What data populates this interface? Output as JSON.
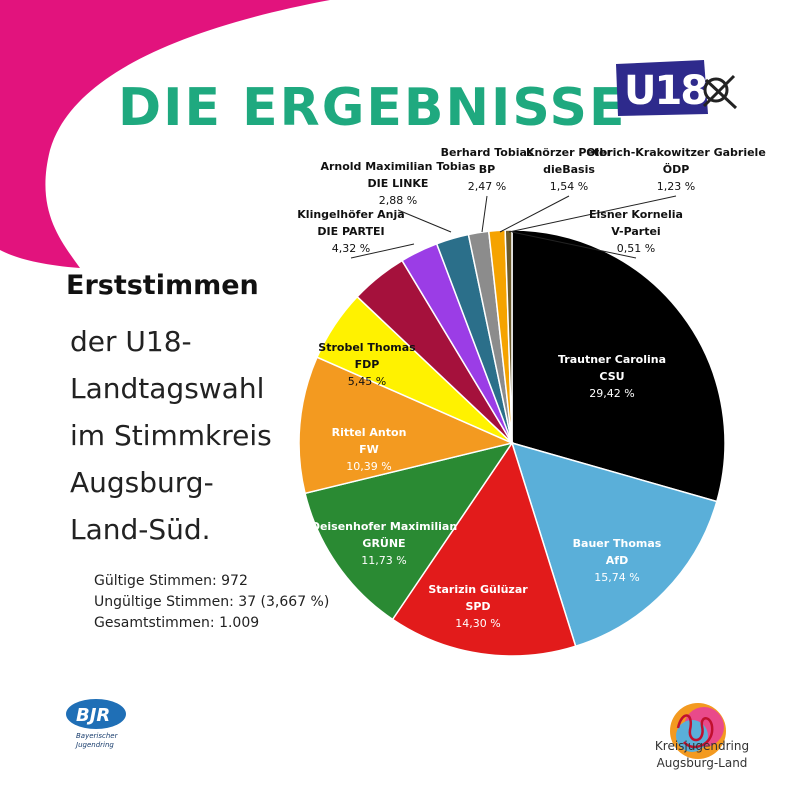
{
  "header": {
    "title": "DIE ERGEBNISSE",
    "logo_text": "U18"
  },
  "intro": {
    "headline": "Erststimmen",
    "lines": [
      "der U18-",
      "Landtagswahl",
      "im Stimmkreis",
      "Augsburg-",
      "Land-Süd."
    ]
  },
  "stats": {
    "valid": "Gültige Stimmen: 972",
    "invalid": "Ungültige Stimmen: 37 (3,667 %)",
    "total": "Gesamtstimmen: 1.009"
  },
  "footer": {
    "bjr_logo": "BJR",
    "bjr_text": [
      "Bayerischer",
      "Jugendring"
    ],
    "kjr_text": [
      "Kreisjugendring",
      "Augsburg-Land"
    ]
  },
  "colors": {
    "magenta": "#e2137d",
    "title_green": "#1fa97f",
    "u18_blue": "#2e2a8c",
    "u18_pink": "#e8147e"
  },
  "chart_data": {
    "type": "pie",
    "start": "12 o'clock, clockwise",
    "slices": [
      {
        "name": "Trautner Carolina",
        "party": "CSU",
        "value": 29.42,
        "label": "29,42 %",
        "color": "#000000"
      },
      {
        "name": "Bauer Thomas",
        "party": "AfD",
        "value": 15.74,
        "label": "15,74 %",
        "color": "#5aafd9"
      },
      {
        "name": "Starizin Gülüzar",
        "party": "SPD",
        "value": 14.3,
        "label": "14,30 %",
        "color": "#e21b1b"
      },
      {
        "name": "Deisenhofer Maximilian",
        "party": "GRÜNE",
        "value": 11.73,
        "label": "11,73 %",
        "color": "#2a8a33"
      },
      {
        "name": "Rittel Anton",
        "party": "FW",
        "value": 10.39,
        "label": "10,39 %",
        "color": "#f39a20"
      },
      {
        "name": "Strobel Thomas",
        "party": "FDP",
        "value": 5.45,
        "label": "5,45 %",
        "color": "#fff200"
      },
      {
        "name": "Klingelhöfer Anja",
        "party": "DIE PARTEI",
        "value": 4.32,
        "label": "4,32 %",
        "color": "#a5113c"
      },
      {
        "name": "Arnold Maximilian Tobias",
        "party": "DIE LINKE",
        "value": 2.88,
        "label": "2,88 %",
        "color": "#9b3de6"
      },
      {
        "name": "Berhard Tobias",
        "party": "BP",
        "value": 2.47,
        "label": "2,47 %",
        "color": "#2b6f8a"
      },
      {
        "name": "Knörzer Peter",
        "party": "dieBasis",
        "value": 1.54,
        "label": "1,54 %",
        "color": "#8c8c8c"
      },
      {
        "name": "Olbrich-Krakowitzer Gabriele",
        "party": "ÖDP",
        "value": 1.23,
        "label": "1,23 %",
        "color": "#f5a300"
      },
      {
        "name": "Elsner Kornelia",
        "party": "V-Partei",
        "value": 0.51,
        "label": "0,51 %",
        "color": "#6b5a2a"
      }
    ]
  }
}
